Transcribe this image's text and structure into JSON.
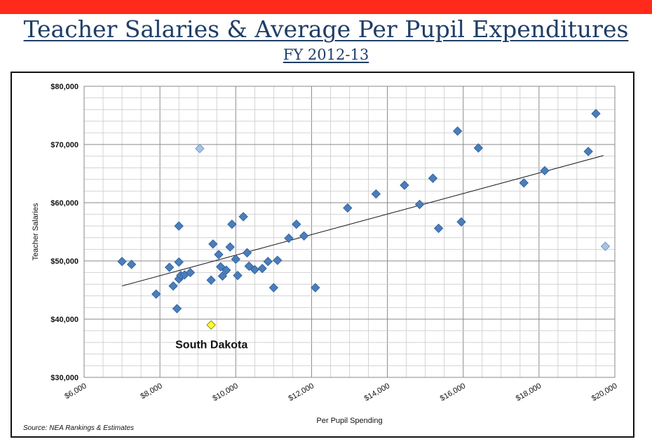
{
  "header": {
    "title": "Teacher Salaries & Average Per Pupil Expenditures",
    "subtitle": "FY 2012-13"
  },
  "source": "Source: NEA Rankings & Estimates",
  "colors": {
    "banner": "#ff2a1a",
    "title": "#1f3e67",
    "point": "#4a7ebb",
    "point_light": "#a6c4e4",
    "highlight": "#ffff33"
  },
  "chart_data": {
    "type": "scatter",
    "xlabel": "Per Pupil Spending",
    "ylabel": "Teacher Salaries",
    "xlim": [
      6000,
      20000
    ],
    "ylim": [
      30000,
      80000
    ],
    "x_ticks": [
      "$6,000",
      "$8,000",
      "$10,000",
      "$12,000",
      "$14,000",
      "$16,000",
      "$18,000",
      "$20,000"
    ],
    "y_ticks": [
      "$80,000",
      "$70,000",
      "$60,000",
      "$50,000",
      "$40,000",
      "$30,000"
    ],
    "grid": true,
    "points": [
      {
        "x": 7000,
        "y": 49900
      },
      {
        "x": 7250,
        "y": 49400
      },
      {
        "x": 7900,
        "y": 44300
      },
      {
        "x": 8250,
        "y": 48900
      },
      {
        "x": 8350,
        "y": 45700
      },
      {
        "x": 8450,
        "y": 41800
      },
      {
        "x": 8500,
        "y": 56000
      },
      {
        "x": 8500,
        "y": 49800
      },
      {
        "x": 8500,
        "y": 46900
      },
      {
        "x": 8550,
        "y": 47500
      },
      {
        "x": 8650,
        "y": 47600
      },
      {
        "x": 8800,
        "y": 48000
      },
      {
        "x": 9350,
        "y": 46700
      },
      {
        "x": 9400,
        "y": 52900
      },
      {
        "x": 9550,
        "y": 51100
      },
      {
        "x": 9600,
        "y": 49000
      },
      {
        "x": 9650,
        "y": 47400
      },
      {
        "x": 9750,
        "y": 48400
      },
      {
        "x": 9850,
        "y": 52400
      },
      {
        "x": 9900,
        "y": 56300
      },
      {
        "x": 10000,
        "y": 50300
      },
      {
        "x": 10050,
        "y": 47500
      },
      {
        "x": 10200,
        "y": 57600
      },
      {
        "x": 10300,
        "y": 51400
      },
      {
        "x": 10350,
        "y": 49100
      },
      {
        "x": 10500,
        "y": 48500
      },
      {
        "x": 10700,
        "y": 48700
      },
      {
        "x": 10850,
        "y": 49900
      },
      {
        "x": 11000,
        "y": 45400
      },
      {
        "x": 11100,
        "y": 50100
      },
      {
        "x": 11400,
        "y": 53900
      },
      {
        "x": 11600,
        "y": 56300
      },
      {
        "x": 11800,
        "y": 54300
      },
      {
        "x": 12100,
        "y": 45400
      },
      {
        "x": 12950,
        "y": 59100
      },
      {
        "x": 13700,
        "y": 61500
      },
      {
        "x": 14450,
        "y": 63000
      },
      {
        "x": 14850,
        "y": 59700
      },
      {
        "x": 15200,
        "y": 64200
      },
      {
        "x": 15350,
        "y": 55600
      },
      {
        "x": 15850,
        "y": 72300
      },
      {
        "x": 15950,
        "y": 56700
      },
      {
        "x": 16400,
        "y": 69400
      },
      {
        "x": 17600,
        "y": 63400
      },
      {
        "x": 18150,
        "y": 65500
      },
      {
        "x": 19300,
        "y": 68800
      },
      {
        "x": 19500,
        "y": 75300
      }
    ],
    "outlier_points": [
      {
        "x": 9050,
        "y": 69300
      },
      {
        "x": 19750,
        "y": 52500
      }
    ],
    "highlight_point": {
      "x": 9350,
      "y": 39000,
      "label": "South Dakota"
    },
    "trendline": {
      "x": [
        7000,
        19700
      ],
      "y": [
        45700,
        68100
      ]
    }
  }
}
